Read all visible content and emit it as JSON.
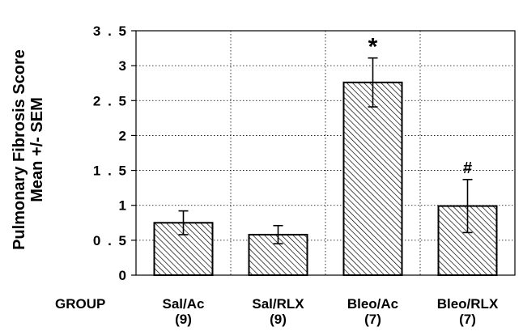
{
  "chart_data": {
    "type": "bar",
    "title": "",
    "ylabel_lines": [
      "Pulmonary Fibrosis Score",
      "Mean +/- SEM"
    ],
    "xlabel": "GROUP",
    "categories": [
      "Sal/Ac",
      "Sal/RLX",
      "Bleo/Ac",
      "Bleo/RLX"
    ],
    "category_counts": [
      "(9)",
      "(9)",
      "(7)",
      "(7)"
    ],
    "values": [
      0.75,
      0.58,
      2.76,
      0.99
    ],
    "errors": [
      0.17,
      0.13,
      0.35,
      0.38
    ],
    "annotations": [
      "",
      "",
      "*",
      "#"
    ],
    "ylim": [
      0,
      3.5
    ],
    "yticks": [
      0,
      0.5,
      1,
      1.5,
      2,
      2.5,
      3,
      3.5
    ],
    "ytick_labels": [
      "0",
      "0 . 5",
      "1",
      "1 . 5",
      "2",
      "2 . 5",
      "3",
      "3 . 5"
    ],
    "grid": true,
    "bar_fill": "diagonal-hatch",
    "colors": {
      "bar_stroke": "#000000",
      "hatch": "#000000",
      "grid": "#000000",
      "background": "#ffffff"
    }
  }
}
